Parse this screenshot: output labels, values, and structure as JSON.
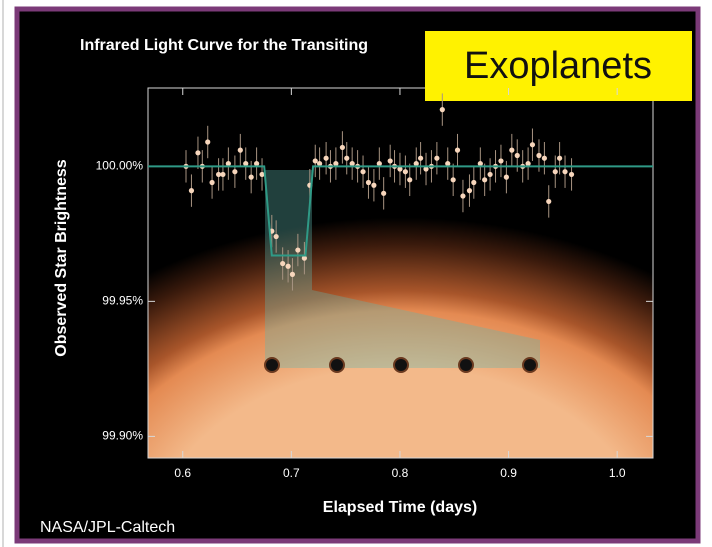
{
  "chart_data": {
    "type": "scatter",
    "title": "Infrared Light Curve for the Transiting",
    "banner": "Exoplanets",
    "credit": "NASA/JPL-Caltech",
    "x_label": "Elapsed Time (days)",
    "y_label": "Observed Star Brightness",
    "xlim": [
      0.568,
      1.033
    ],
    "ylim": [
      99.892,
      100.029
    ],
    "xticks": [
      0.6,
      0.7,
      0.8,
      0.9,
      {
        "value": 1.0,
        "label": "1.0"
      }
    ],
    "yticks": [
      {
        "value": 99.9,
        "label": "99.90%"
      },
      {
        "value": 99.95,
        "label": "99.95%"
      },
      {
        "value": 100,
        "label": "100.00%"
      }
    ],
    "series": [
      {
        "mode": "markers",
        "color": "#f7d6bc",
        "error_color": "#a89482",
        "error": 0.006,
        "x": [
          0.603,
          0.608,
          0.614,
          0.618,
          0.623,
          0.627,
          0.633,
          0.637,
          0.642,
          0.648,
          0.653,
          0.658,
          0.663,
          0.668,
          0.673,
          0.682,
          0.686,
          0.692,
          0.697,
          0.701,
          0.706,
          0.712,
          0.717,
          0.722,
          0.726,
          0.732,
          0.736,
          0.741,
          0.747,
          0.751,
          0.756,
          0.761,
          0.766,
          0.771,
          0.776,
          0.781,
          0.785,
          0.791,
          0.795,
          0.8,
          0.805,
          0.809,
          0.815,
          0.819,
          0.824,
          0.829,
          0.834,
          0.839,
          0.844,
          0.849,
          0.853,
          0.858,
          0.864,
          0.868,
          0.874,
          0.878,
          0.883,
          0.888,
          0.893,
          0.898,
          0.903,
          0.908,
          0.913,
          0.918,
          0.922,
          0.928,
          0.933,
          0.937,
          0.943,
          0.947,
          0.952,
          0.958
        ],
        "values": [
          100.0,
          99.991,
          100.005,
          100.0,
          100.009,
          99.994,
          99.997,
          99.997,
          100.001,
          99.998,
          100.006,
          100.001,
          99.996,
          100.001,
          99.997,
          99.976,
          99.974,
          99.964,
          99.963,
          99.96,
          99.969,
          99.966,
          99.993,
          100.002,
          100.001,
          100.003,
          100.0,
          100.001,
          100.007,
          100.003,
          100.001,
          100.0,
          99.998,
          99.994,
          99.993,
          100.001,
          99.99,
          100.002,
          100.0,
          99.999,
          99.998,
          99.995,
          100.001,
          100.003,
          99.999,
          100.0,
          100.003,
          100.021,
          100.001,
          99.995,
          100.006,
          99.989,
          99.991,
          99.994,
          100.001,
          99.995,
          99.997,
          100.0,
          100.002,
          99.996,
          100.006,
          100.004,
          100.0,
          100.001,
          100.008,
          100.004,
          100.003,
          99.987,
          99.998,
          100.003,
          99.998,
          99.997
        ]
      },
      {
        "mode": "line",
        "color": "#2f9a86",
        "x": [
          0.568,
          0.675,
          0.682,
          0.713,
          0.72,
          1.033
        ],
        "values": [
          100,
          100,
          99.967,
          99.967,
          100,
          100
        ]
      }
    ]
  }
}
